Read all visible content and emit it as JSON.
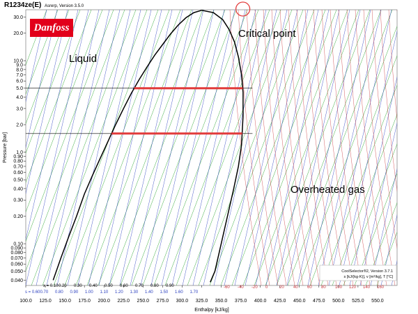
{
  "header": {
    "title": "R1234ze(E)",
    "subtitle": "Asrerp, Version 3.5.0"
  },
  "logo": {
    "text": "Danfoss",
    "color": "#e2001a"
  },
  "annotations": {
    "liquid": "Liquid",
    "critical_point": "Critical point",
    "overheated_gas": "Overheated gas"
  },
  "footer": {
    "line1": "CoolSelector®2, Version 3.7.1",
    "line2": "s [kJ/(kg·K)], v [m³/kg], T [°C]"
  },
  "chart_data": {
    "type": "line",
    "title": "R1234ze(E)",
    "xlabel": "Enthalpy [kJ/kg]",
    "ylabel": "Pressure [bar]",
    "xlim": [
      100,
      575
    ],
    "ylim": [
      0.035,
      36
    ],
    "y_scale": "log",
    "x_ticks": [
      100,
      125,
      150,
      175,
      200,
      225,
      250,
      275,
      300,
      325,
      350,
      375,
      400,
      425,
      450,
      475,
      500,
      525,
      550
    ],
    "x_tick_labels": [
      "100.0",
      "125.0",
      "150.0",
      "175.0",
      "200.0",
      "225.0",
      "250.0",
      "275.0",
      "300.0",
      "325.0",
      "350.0",
      "375.0",
      "400.0",
      "425.0",
      "450.0",
      "475.0",
      "500.0",
      "525.0",
      "550.0"
    ],
    "y_ticks": [
      30,
      20,
      10,
      9,
      8,
      7,
      6,
      5,
      4,
      3,
      2,
      1,
      0.9,
      0.8,
      0.7,
      0.6,
      0.5,
      0.4,
      0.3,
      0.2,
      0.1,
      0.09,
      0.08,
      0.07,
      0.06,
      0.05,
      0.04
    ],
    "y_tick_labels": [
      "30.0",
      "20.0",
      "10.0",
      "9.0",
      "8.0",
      "7.0",
      "6.0",
      "5.0",
      "4.0",
      "3.0",
      "2.0",
      "1.0",
      "0.90",
      "0.80",
      "0.70",
      "0.60",
      "0.50",
      "0.40",
      "0.30",
      "0.20",
      "0.10",
      "0.090",
      "0.080",
      "0.070",
      "0.060",
      "0.050",
      "0.040"
    ],
    "saturated_liquid": [
      [
        135,
        0.04
      ],
      [
        145,
        0.07
      ],
      [
        155,
        0.12
      ],
      [
        165,
        0.2
      ],
      [
        175,
        0.35
      ],
      [
        185,
        0.55
      ],
      [
        195,
        0.85
      ],
      [
        205,
        1.3
      ],
      [
        215,
        2.0
      ],
      [
        225,
        3.0
      ],
      [
        235,
        4.4
      ],
      [
        245,
        6.2
      ],
      [
        255,
        8.5
      ],
      [
        265,
        11.5
      ],
      [
        275,
        15.0
      ],
      [
        285,
        19.5
      ],
      [
        295,
        24.5
      ],
      [
        305,
        29.5
      ],
      [
        315,
        33.5
      ],
      [
        325,
        35.5
      ]
    ],
    "saturated_vapor": [
      [
        325,
        35.5
      ],
      [
        340,
        33.5
      ],
      [
        352,
        28.0
      ],
      [
        360,
        22.0
      ],
      [
        367,
        16.0
      ],
      [
        372,
        11.0
      ],
      [
        376,
        7.0
      ],
      [
        378,
        4.5
      ],
      [
        378,
        2.5
      ],
      [
        376,
        1.2
      ],
      [
        372,
        0.7
      ],
      [
        366,
        0.4
      ],
      [
        358,
        0.2
      ],
      [
        350,
        0.1
      ],
      [
        342,
        0.05
      ],
      [
        336,
        0.038
      ]
    ],
    "critical_point": [
      326,
      36
    ],
    "highlighted_pressures": [
      5.0,
      1.6
    ],
    "reference_lines": [
      5.0,
      1.6
    ],
    "quality_labels": [
      "x = 0.10",
      "0.20",
      "0.30",
      "0.40",
      "0.50",
      "0.60",
      "0.70",
      "0.80",
      "0.90"
    ],
    "entropy_labels": [
      "s = 0.60",
      "0.70",
      "0.80",
      "0.90",
      "1.00",
      "1.10",
      "1.20",
      "1.30",
      "1.40",
      "1.50",
      "1.60",
      "1.70"
    ],
    "temperature_labels": [
      "-60",
      "-40",
      "-20",
      "0",
      "20",
      "40",
      "60",
      "80",
      "100",
      "120",
      "140",
      "160"
    ],
    "isotherm_colors": {
      "isotherm": "#c8343a",
      "isochore": "#27a32b",
      "isentrope": "#2a3fbf",
      "saturation": "#000000",
      "highlight": "#e23b3b"
    }
  }
}
